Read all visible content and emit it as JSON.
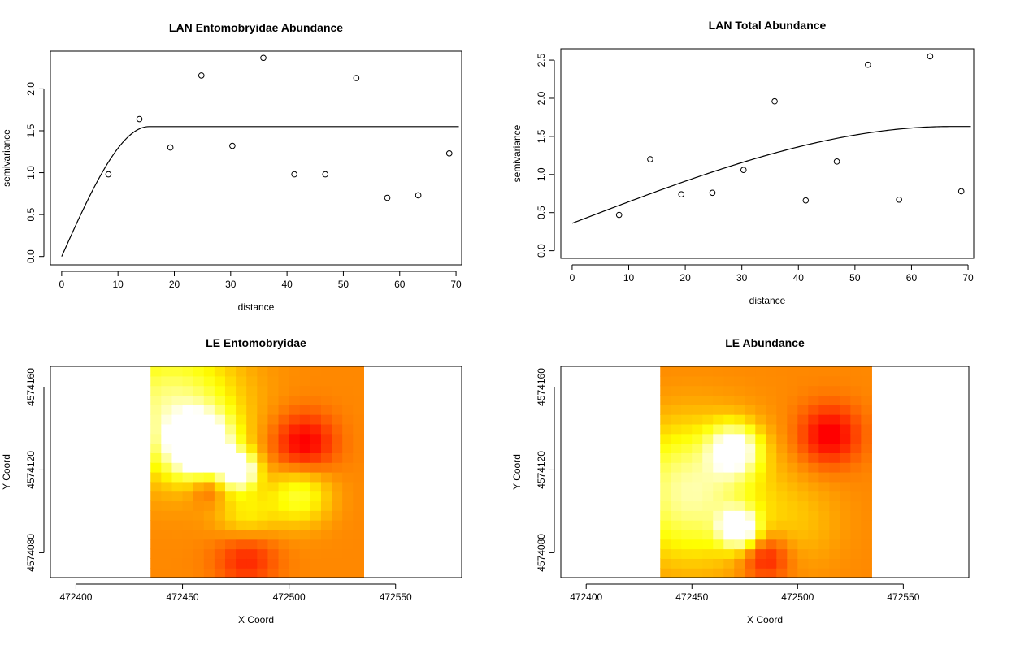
{
  "chart_data": [
    {
      "type": "scatter",
      "title": "LAN Entomobryidae Abundance",
      "xlabel": "distance",
      "ylabel": "semivariance",
      "xlim": [
        -2,
        71
      ],
      "ylim": [
        -0.1,
        2.45
      ],
      "xticks": [
        "0",
        "10",
        "20",
        "30",
        "40",
        "50",
        "60",
        "70"
      ],
      "yticks": [
        "0.0",
        "0.5",
        "1.0",
        "1.5",
        "2.0"
      ],
      "points": {
        "x": [
          8.3,
          13.8,
          19.3,
          24.8,
          30.3,
          35.8,
          41.3,
          46.8,
          52.3,
          57.8,
          63.3,
          68.8
        ],
        "y": [
          0.98,
          1.64,
          1.3,
          2.16,
          1.32,
          2.37,
          0.98,
          0.98,
          2.13,
          0.7,
          0.73,
          1.23
        ]
      },
      "model": {
        "kind": "spherical",
        "nugget": 0.0,
        "sill": 1.55,
        "range": 15.5
      }
    },
    {
      "type": "scatter",
      "title": "LAN Total Abundance",
      "xlabel": "distance",
      "ylabel": "semivariance",
      "xlim": [
        -2,
        71
      ],
      "ylim": [
        -0.1,
        2.65
      ],
      "xticks": [
        "0",
        "10",
        "20",
        "30",
        "40",
        "50",
        "60",
        "70"
      ],
      "yticks": [
        "0.0",
        "0.5",
        "1.0",
        "1.5",
        "2.0",
        "2.5"
      ],
      "points": {
        "x": [
          8.3,
          13.8,
          19.3,
          24.8,
          30.3,
          35.8,
          41.3,
          46.8,
          52.3,
          57.8,
          63.3,
          68.8
        ],
        "y": [
          0.47,
          1.2,
          0.74,
          0.76,
          1.06,
          1.96,
          0.66,
          1.17,
          2.44,
          0.67,
          2.55,
          0.78
        ]
      },
      "model": {
        "kind": "spherical",
        "nugget": 0.36,
        "sill": 1.63,
        "range": 67
      }
    },
    {
      "type": "heatmap",
      "title": "LE Entomobryidae",
      "xlabel": "X Coord",
      "ylabel": "Y Coord",
      "xlim": [
        472388,
        472581
      ],
      "ylim": [
        4574068,
        4574170
      ],
      "xticks": [
        "472400",
        "472450",
        "472500",
        "472550"
      ],
      "yticks": [
        "4574080",
        "4574120",
        "4574160"
      ],
      "extent": {
        "x": [
          472435,
          472535
        ],
        "y": [
          4574068,
          4574170
        ]
      },
      "colorscale": [
        "#ff0000",
        "#ffff00",
        "#ffffff"
      ],
      "hotspots": [
        {
          "x": 472458,
          "y": 4574132,
          "s": 10,
          "a": 1.05
        },
        {
          "x": 472476,
          "y": 4574120,
          "s": 6,
          "a": 0.9
        },
        {
          "x": 472445,
          "y": 4574150,
          "s": 22,
          "a": 0.5
        },
        {
          "x": 472505,
          "y": 4574108,
          "s": 10,
          "a": 0.35
        },
        {
          "x": 472480,
          "y": 4574098,
          "s": 10,
          "a": 0.25
        },
        {
          "x": 472507,
          "y": 4574133,
          "s": 10,
          "a": -0.35
        },
        {
          "x": 472480,
          "y": 4574078,
          "s": 10,
          "a": -0.25
        },
        {
          "x": 472462,
          "y": 4574112,
          "s": 6,
          "a": -0.2
        }
      ]
    },
    {
      "type": "heatmap",
      "title": "LE Abundance",
      "xlabel": "X Coord",
      "ylabel": "Y Coord",
      "xlim": [
        472388,
        472581
      ],
      "ylim": [
        4574068,
        4574170
      ],
      "xticks": [
        "472400",
        "472450",
        "472500",
        "472550"
      ],
      "yticks": [
        "4574080",
        "4574120",
        "4574160"
      ],
      "extent": {
        "x": [
          472435,
          472535
        ],
        "y": [
          4574068,
          4574170
        ]
      },
      "colorscale": [
        "#ff0000",
        "#ffff00",
        "#ffffff"
      ],
      "hotspots": [
        {
          "x": 472472,
          "y": 4574092,
          "s": 6,
          "a": 0.9
        },
        {
          "x": 472470,
          "y": 4574130,
          "s": 8,
          "a": 0.7
        },
        {
          "x": 472450,
          "y": 4574110,
          "s": 22,
          "a": 0.55
        },
        {
          "x": 472515,
          "y": 4574137,
          "s": 10,
          "a": -0.35
        },
        {
          "x": 472485,
          "y": 4574078,
          "s": 8,
          "a": -0.3
        },
        {
          "x": 472500,
          "y": 4574095,
          "s": 15,
          "a": 0.12
        }
      ]
    }
  ]
}
